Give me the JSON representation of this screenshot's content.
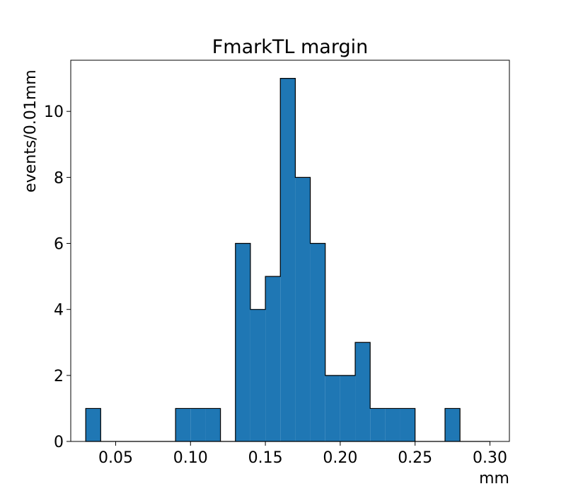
{
  "chart_data": {
    "type": "bar",
    "title": "FmarkTL margin",
    "xlabel": "mm",
    "ylabel": "events/0.01mm",
    "xlim": [
      0.02,
      0.313
    ],
    "ylim": [
      0,
      11.55
    ],
    "bin_width": 0.01,
    "bins": [
      {
        "x0": 0.03,
        "x1": 0.04,
        "count": 1
      },
      {
        "x0": 0.04,
        "x1": 0.05,
        "count": 0
      },
      {
        "x0": 0.05,
        "x1": 0.06,
        "count": 0
      },
      {
        "x0": 0.06,
        "x1": 0.07,
        "count": 0
      },
      {
        "x0": 0.07,
        "x1": 0.08,
        "count": 0
      },
      {
        "x0": 0.08,
        "x1": 0.09,
        "count": 0
      },
      {
        "x0": 0.09,
        "x1": 0.1,
        "count": 1
      },
      {
        "x0": 0.1,
        "x1": 0.11,
        "count": 1
      },
      {
        "x0": 0.11,
        "x1": 0.12,
        "count": 1
      },
      {
        "x0": 0.12,
        "x1": 0.13,
        "count": 0
      },
      {
        "x0": 0.13,
        "x1": 0.14,
        "count": 6
      },
      {
        "x0": 0.14,
        "x1": 0.15,
        "count": 4
      },
      {
        "x0": 0.15,
        "x1": 0.16,
        "count": 5
      },
      {
        "x0": 0.16,
        "x1": 0.17,
        "count": 11
      },
      {
        "x0": 0.17,
        "x1": 0.18,
        "count": 8
      },
      {
        "x0": 0.18,
        "x1": 0.19,
        "count": 6
      },
      {
        "x0": 0.19,
        "x1": 0.2,
        "count": 2
      },
      {
        "x0": 0.2,
        "x1": 0.21,
        "count": 2
      },
      {
        "x0": 0.21,
        "x1": 0.22,
        "count": 3
      },
      {
        "x0": 0.22,
        "x1": 0.23,
        "count": 1
      },
      {
        "x0": 0.23,
        "x1": 0.24,
        "count": 1
      },
      {
        "x0": 0.24,
        "x1": 0.25,
        "count": 1
      },
      {
        "x0": 0.25,
        "x1": 0.26,
        "count": 0
      },
      {
        "x0": 0.26,
        "x1": 0.27,
        "count": 0
      },
      {
        "x0": 0.27,
        "x1": 0.28,
        "count": 1
      },
      {
        "x0": 0.28,
        "x1": 0.29,
        "count": 0
      },
      {
        "x0": 0.29,
        "x1": 0.3,
        "count": 0
      }
    ],
    "x_ticks": [
      {
        "value": 0.05,
        "label": "0.05"
      },
      {
        "value": 0.1,
        "label": "0.10"
      },
      {
        "value": 0.15,
        "label": "0.15"
      },
      {
        "value": 0.2,
        "label": "0.20"
      },
      {
        "value": 0.25,
        "label": "0.25"
      },
      {
        "value": 0.3,
        "label": "0.30"
      }
    ],
    "y_ticks": [
      {
        "value": 0,
        "label": "0"
      },
      {
        "value": 2,
        "label": "2"
      },
      {
        "value": 4,
        "label": "4"
      },
      {
        "value": 6,
        "label": "6"
      },
      {
        "value": 8,
        "label": "8"
      },
      {
        "value": 10,
        "label": "10"
      }
    ],
    "grid": false,
    "colors": {
      "bar_fill": "#1f77b4",
      "bar_edge": "#000000"
    }
  }
}
